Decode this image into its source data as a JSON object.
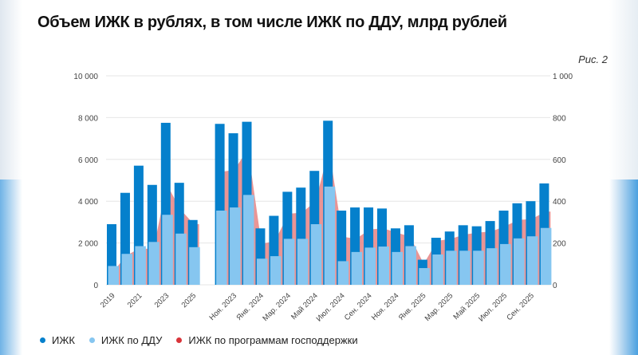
{
  "title": "Объем ИЖК в рублях, в том числе ИЖК по ДДУ, млрд рублей",
  "figure_label": "Рис. 2",
  "chart_data": {
    "type": "bar",
    "title": "Объем ИЖК в рублях, в том числе ИЖК по ДДУ, млрд рублей",
    "left_axis": {
      "ylim": [
        0,
        10000
      ],
      "ticks": [
        "0",
        "2 000",
        "4 000",
        "6 000",
        "8 000",
        "10 000"
      ],
      "applies_to": "annual"
    },
    "right_axis": {
      "ylim": [
        0,
        1000
      ],
      "ticks": [
        "0",
        "200",
        "400",
        "600",
        "800",
        "1 000"
      ],
      "applies_to": "monthly"
    },
    "grid": true,
    "legend_position": "bottom-left",
    "colors": {
      "izhk": "#0580cc",
      "ddu": "#86c6f0",
      "gov": "#e8898a",
      "gov_dot": "#d9343a"
    },
    "annual": {
      "categories": [
        "2019",
        "2020",
        "2021",
        "2022",
        "2023",
        "2024",
        "2025"
      ],
      "tick_labels": [
        "2019",
        "",
        "2021",
        "",
        "2023",
        "",
        "2025"
      ],
      "series": [
        {
          "name": "ИЖК",
          "values": [
            2900,
            4400,
            5700,
            4780,
            7750,
            4880,
            3100
          ]
        },
        {
          "name": "ИЖК по ДДУ",
          "values": [
            900,
            1480,
            1850,
            2050,
            3350,
            2450,
            1800
          ]
        },
        {
          "name": "ИЖК по программам господдержки",
          "values": [
            600,
            1400,
            1750,
            1700,
            4800,
            3600,
            2900
          ]
        }
      ]
    },
    "monthly": {
      "categories": [
        "Окт. 2023",
        "Ноя. 2023",
        "Дек. 2023",
        "Янв. 2024",
        "Фев. 2024",
        "Мар. 2024",
        "Апр. 2024",
        "Май 2024",
        "Июн. 2024",
        "Июл. 2024",
        "Авг. 2024",
        "Сен. 2024",
        "Окт. 2024",
        "Ноя. 2024",
        "Дек. 2024",
        "Янв. 2025",
        "Фев. 2025",
        "Мар. 2025",
        "Апр. 2025",
        "Май 2025",
        "Июн. 2025",
        "Июл. 2025",
        "Авг. 2025",
        "Сен. 2025",
        "Окт. 2025"
      ],
      "tick_labels": [
        "",
        "Ноя. 2023",
        "",
        "Янв. 2024",
        "",
        "Мар. 2024",
        "",
        "Май 2024",
        "",
        "Июл. 2024",
        "",
        "Сен. 2024",
        "",
        "Ноя. 2024",
        "",
        "Янв. 2025",
        "",
        "Мар. 2025",
        "",
        "Май 2025",
        "",
        "Июл. 2025",
        "",
        "Сен. 2025",
        ""
      ],
      "series": [
        {
          "name": "ИЖК",
          "values": [
            770,
            725,
            780,
            270,
            330,
            445,
            465,
            545,
            785,
            355,
            370,
            370,
            365,
            270,
            285,
            120,
            225,
            255,
            285,
            280,
            305,
            355,
            390,
            400,
            485
          ]
        },
        {
          "name": "ИЖК по ДДУ",
          "values": [
            355,
            370,
            430,
            125,
            137,
            220,
            220,
            290,
            470,
            113,
            157,
            178,
            183,
            157,
            185,
            80,
            145,
            163,
            163,
            163,
            175,
            195,
            222,
            232,
            272
          ]
        },
        {
          "name": "ИЖК по программам господдержки",
          "values": [
            540,
            550,
            650,
            195,
            210,
            340,
            345,
            400,
            650,
            230,
            220,
            265,
            270,
            250,
            230,
            100,
            210,
            220,
            240,
            250,
            255,
            280,
            310,
            315,
            350
          ]
        }
      ]
    }
  },
  "legend": [
    {
      "label": "ИЖК",
      "color": "#0580cc"
    },
    {
      "label": "ИЖК по ДДУ",
      "color": "#86c6f0"
    },
    {
      "label": "ИЖК по программам господдержки",
      "color": "#d9343a"
    }
  ]
}
